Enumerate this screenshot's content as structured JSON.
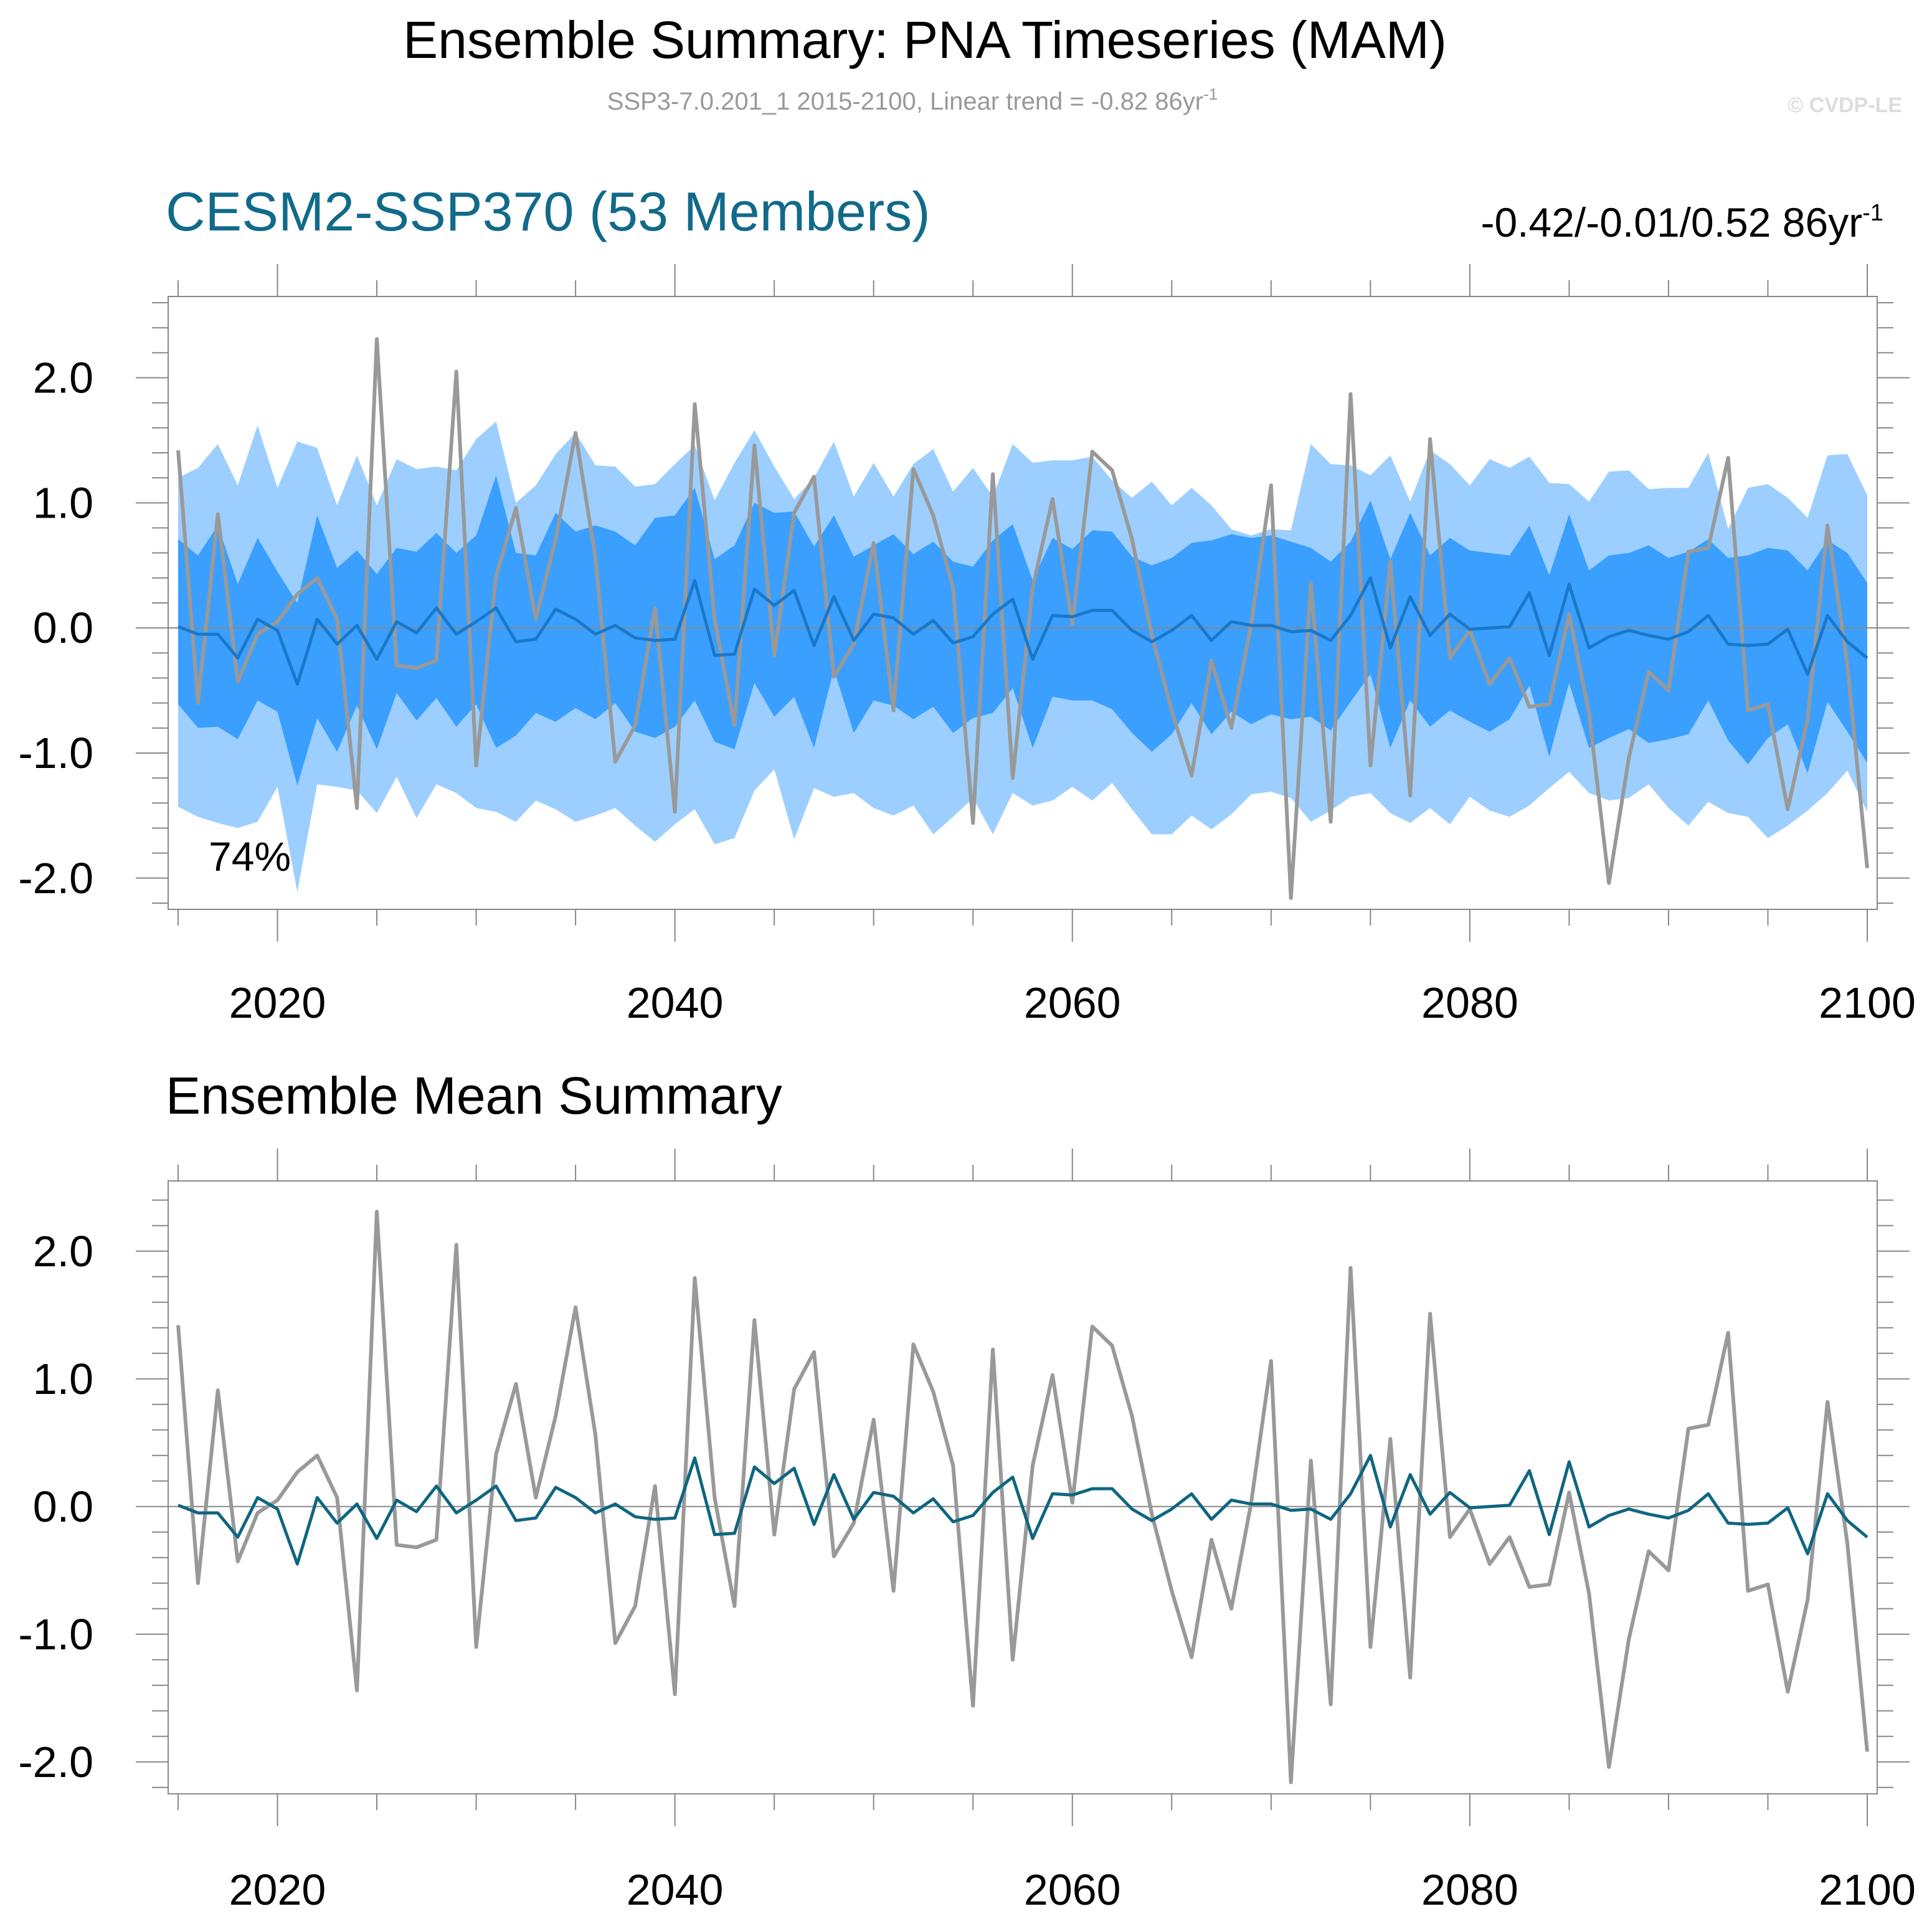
{
  "figure": {
    "title": "Ensemble Summary: PNA Timeseries (MAM)",
    "subtitle_main": "SSP3-7.0.201_1 2015-2100, Linear trend = -0.82 86yr",
    "subtitle_sup": "-1",
    "copyright": "© CVDP-LE"
  },
  "panel1": {
    "title": "CESM2-SSP370 (53 Members)",
    "trend_text": "-0.42/-0.01/0.52 86yr",
    "trend_sup": "-1",
    "percent_label": "74%"
  },
  "panel2": {
    "title": "Ensemble Mean Summary"
  },
  "colors": {
    "band_outer": "#9ccfff",
    "band_inner": "#3a9fff",
    "ens_mean_panel1": "#1a78c8",
    "ens_mean_panel2": "#0f6680",
    "observed": "#999999",
    "panel1_title": "#126a8a",
    "axis": "#888888",
    "subtitle": "#999999",
    "copyright": "#dddddd"
  },
  "chart_data": [
    {
      "type": "area",
      "panel": "CESM2-SSP370 (53 Members)",
      "x_start": 2015,
      "x_end": 2100,
      "xlim": [
        2014.5,
        2100.5
      ],
      "ylim": [
        -2.25,
        2.65
      ],
      "x_ticks": [
        2020,
        2040,
        2060,
        2080,
        2100
      ],
      "y_ticks": [
        2.0,
        1.0,
        0.0,
        -1.0,
        -2.0
      ],
      "y_tick_labels": [
        "2.0",
        "1.0",
        "0.0",
        "-1.0",
        "-2.0"
      ],
      "series": [
        {
          "role": "observed",
          "values": [
            1.42,
            -0.6,
            0.91,
            -0.43,
            -0.05,
            0.05,
            0.27,
            0.4,
            0.07,
            -1.44,
            2.31,
            -0.3,
            -0.32,
            -0.26,
            2.05,
            -1.1,
            0.41,
            0.96,
            0.07,
            0.71,
            1.56,
            0.56,
            -1.07,
            -0.78,
            0.16,
            -1.47,
            1.79,
            0.07,
            -0.78,
            1.46,
            -0.22,
            0.92,
            1.21,
            -0.39,
            -0.13,
            0.68,
            -0.66,
            1.27,
            0.9,
            0.32,
            -1.56,
            1.23,
            -1.2,
            0.32,
            1.03,
            0.03,
            1.41,
            1.26,
            0.71,
            -0.06,
            -0.66,
            -1.18,
            -0.26,
            -0.8,
            0.03,
            1.14,
            -2.16,
            0.36,
            -1.55,
            1.87,
            -1.1,
            0.53,
            -1.34,
            1.51,
            -0.24,
            -0.02,
            -0.45,
            -0.24,
            -0.63,
            -0.61,
            0.11,
            -0.68,
            -2.04,
            -1.04,
            -0.35,
            -0.5,
            0.61,
            0.64,
            1.36,
            -0.66,
            -0.61,
            -1.45,
            -0.73,
            0.82,
            -0.29,
            -1.92
          ]
        },
        {
          "role": "ensemble_mean",
          "values": [
            0.01,
            -0.05,
            -0.05,
            -0.24,
            0.07,
            -0.02,
            -0.45,
            0.07,
            -0.13,
            0.02,
            -0.25,
            0.05,
            -0.04,
            0.16,
            -0.05,
            0.05,
            0.16,
            -0.11,
            -0.09,
            0.15,
            0.07,
            -0.05,
            0.02,
            -0.08,
            -0.1,
            -0.09,
            0.38,
            -0.22,
            -0.21,
            0.31,
            0.18,
            0.3,
            -0.14,
            0.25,
            -0.1,
            0.11,
            0.08,
            -0.05,
            0.06,
            -0.12,
            -0.07,
            0.11,
            0.23,
            -0.25,
            0.1,
            0.09,
            0.14,
            0.14,
            -0.02,
            -0.11,
            -0.02,
            0.1,
            -0.1,
            0.05,
            0.02,
            0.02,
            -0.03,
            -0.02,
            -0.1,
            0.1,
            0.4,
            -0.16,
            0.25,
            -0.06,
            0.11,
            -0.01,
            -0.0,
            0.01,
            0.28,
            -0.22,
            0.35,
            -0.16,
            -0.07,
            -0.02,
            -0.06,
            -0.09,
            -0.03,
            0.1,
            -0.13,
            -0.14,
            -0.13,
            -0.01,
            -0.37,
            0.1,
            -0.11,
            -0.24
          ]
        },
        {
          "role": "inner_band_upper",
          "values": [
            0.71,
            0.58,
            0.82,
            0.35,
            0.72,
            0.45,
            0.2,
            0.9,
            0.48,
            0.62,
            0.43,
            0.64,
            0.61,
            0.76,
            0.6,
            0.74,
            1.22,
            0.6,
            0.58,
            0.92,
            0.77,
            0.82,
            0.77,
            0.66,
            0.88,
            0.9,
            1.12,
            0.55,
            0.66,
            1.0,
            0.92,
            0.93,
            0.65,
            0.9,
            0.57,
            0.66,
            0.75,
            0.59,
            0.69,
            0.53,
            0.49,
            0.7,
            0.83,
            0.38,
            0.72,
            0.63,
            0.78,
            0.77,
            0.57,
            0.5,
            0.56,
            0.68,
            0.7,
            0.75,
            0.72,
            0.74,
            0.69,
            0.64,
            0.53,
            0.69,
            1.02,
            0.55,
            0.92,
            0.58,
            0.72,
            0.62,
            0.6,
            0.58,
            0.82,
            0.42,
            0.91,
            0.46,
            0.58,
            0.6,
            0.66,
            0.56,
            0.61,
            0.71,
            0.56,
            0.58,
            0.64,
            0.62,
            0.46,
            0.7,
            0.6,
            0.36
          ]
        },
        {
          "role": "inner_band_lower",
          "values": [
            -0.61,
            -0.8,
            -0.79,
            -0.89,
            -0.58,
            -0.67,
            -1.26,
            -0.72,
            -0.99,
            -0.62,
            -0.97,
            -0.52,
            -0.74,
            -0.56,
            -0.79,
            -0.61,
            -0.96,
            -0.86,
            -0.68,
            -0.75,
            -0.64,
            -0.73,
            -0.6,
            -0.83,
            -0.88,
            -0.79,
            -0.58,
            -0.91,
            -0.97,
            -0.44,
            -0.71,
            -0.55,
            -0.96,
            -0.33,
            -0.84,
            -0.58,
            -0.62,
            -0.73,
            -0.63,
            -0.84,
            -0.72,
            -0.68,
            -0.48,
            -0.96,
            -0.55,
            -0.58,
            -0.58,
            -0.65,
            -0.84,
            -0.99,
            -0.85,
            -0.6,
            -0.85,
            -0.67,
            -0.77,
            -0.69,
            -0.73,
            -0.71,
            -0.82,
            -0.59,
            -0.37,
            -0.96,
            -0.58,
            -0.79,
            -0.66,
            -0.75,
            -0.83,
            -0.73,
            -0.46,
            -1.03,
            -0.44,
            -0.96,
            -0.88,
            -0.81,
            -0.92,
            -0.89,
            -0.85,
            -0.58,
            -0.9,
            -1.09,
            -0.88,
            -0.77,
            -1.16,
            -0.59,
            -0.83,
            -1.08
          ]
        },
        {
          "role": "outer_band_upper",
          "values": [
            1.2,
            1.28,
            1.47,
            1.14,
            1.62,
            1.12,
            1.49,
            1.44,
            0.98,
            1.38,
            0.98,
            1.35,
            1.27,
            1.29,
            1.26,
            1.51,
            1.65,
            1.0,
            1.14,
            1.39,
            1.56,
            1.3,
            1.29,
            1.13,
            1.15,
            1.31,
            1.46,
            1.02,
            1.32,
            1.58,
            1.29,
            1.03,
            1.2,
            1.49,
            1.05,
            1.32,
            1.05,
            1.31,
            1.43,
            1.09,
            1.28,
            1.05,
            1.47,
            1.32,
            1.34,
            1.34,
            1.37,
            1.18,
            1.04,
            1.17,
            0.98,
            1.12,
            0.98,
            0.79,
            0.74,
            0.79,
            0.78,
            1.47,
            1.31,
            1.3,
            1.22,
            1.38,
            1.01,
            1.42,
            1.31,
            1.14,
            1.35,
            1.28,
            1.37,
            1.16,
            1.15,
            1.01,
            1.25,
            1.26,
            1.11,
            1.12,
            1.12,
            1.4,
            0.79,
            1.12,
            1.15,
            1.04,
            0.88,
            1.38,
            1.39,
            1.06
          ]
        },
        {
          "role": "outer_band_lower",
          "values": [
            -1.43,
            -1.51,
            -1.56,
            -1.6,
            -1.55,
            -1.27,
            -2.11,
            -1.25,
            -1.27,
            -1.3,
            -1.48,
            -1.19,
            -1.52,
            -1.25,
            -1.32,
            -1.44,
            -1.47,
            -1.55,
            -1.38,
            -1.45,
            -1.55,
            -1.5,
            -1.44,
            -1.58,
            -1.71,
            -1.57,
            -1.45,
            -1.73,
            -1.68,
            -1.3,
            -1.13,
            -1.69,
            -1.28,
            -1.35,
            -1.32,
            -1.44,
            -1.5,
            -1.42,
            -1.65,
            -1.51,
            -1.36,
            -1.65,
            -1.32,
            -1.42,
            -1.38,
            -1.27,
            -1.38,
            -1.24,
            -1.45,
            -1.65,
            -1.65,
            -1.5,
            -1.61,
            -1.49,
            -1.33,
            -1.31,
            -1.36,
            -1.55,
            -1.46,
            -1.35,
            -1.32,
            -1.48,
            -1.56,
            -1.44,
            -1.57,
            -1.35,
            -1.46,
            -1.51,
            -1.42,
            -1.28,
            -1.15,
            -1.32,
            -1.38,
            -1.36,
            -1.25,
            -1.44,
            -1.58,
            -1.39,
            -1.48,
            -1.51,
            -1.68,
            -1.58,
            -1.46,
            -1.32,
            -1.14,
            -1.47
          ]
        }
      ]
    },
    {
      "type": "line",
      "panel": "Ensemble Mean Summary",
      "x_start": 2015,
      "x_end": 2100,
      "xlim": [
        2014.5,
        2100.5
      ],
      "ylim": [
        -2.25,
        2.55
      ],
      "x_ticks": [
        2020,
        2040,
        2060,
        2080,
        2100
      ],
      "y_ticks": [
        2.0,
        1.0,
        0.0,
        -1.0,
        -2.0
      ],
      "y_tick_labels": [
        "2.0",
        "1.0",
        "0.0",
        "-1.0",
        "-2.0"
      ],
      "series": [
        {
          "role": "observed",
          "values": [
            1.42,
            -0.6,
            0.91,
            -0.43,
            -0.05,
            0.05,
            0.27,
            0.4,
            0.07,
            -1.44,
            2.31,
            -0.3,
            -0.32,
            -0.26,
            2.05,
            -1.1,
            0.41,
            0.96,
            0.07,
            0.71,
            1.56,
            0.56,
            -1.07,
            -0.78,
            0.16,
            -1.47,
            1.79,
            0.07,
            -0.78,
            1.46,
            -0.22,
            0.92,
            1.21,
            -0.39,
            -0.13,
            0.68,
            -0.66,
            1.27,
            0.9,
            0.32,
            -1.56,
            1.23,
            -1.2,
            0.32,
            1.03,
            0.03,
            1.41,
            1.26,
            0.71,
            -0.06,
            -0.66,
            -1.18,
            -0.26,
            -0.8,
            0.03,
            1.14,
            -2.16,
            0.36,
            -1.55,
            1.87,
            -1.1,
            0.53,
            -1.34,
            1.51,
            -0.24,
            -0.02,
            -0.45,
            -0.24,
            -0.63,
            -0.61,
            0.11,
            -0.68,
            -2.04,
            -1.04,
            -0.35,
            -0.5,
            0.61,
            0.64,
            1.36,
            -0.66,
            -0.61,
            -1.45,
            -0.73,
            0.82,
            -0.29,
            -1.92
          ]
        },
        {
          "role": "ensemble_mean",
          "values": [
            0.01,
            -0.05,
            -0.05,
            -0.24,
            0.07,
            -0.02,
            -0.45,
            0.07,
            -0.13,
            0.02,
            -0.25,
            0.05,
            -0.04,
            0.16,
            -0.05,
            0.05,
            0.16,
            -0.11,
            -0.09,
            0.15,
            0.07,
            -0.05,
            0.02,
            -0.08,
            -0.1,
            -0.09,
            0.38,
            -0.22,
            -0.21,
            0.31,
            0.18,
            0.3,
            -0.14,
            0.25,
            -0.1,
            0.11,
            0.08,
            -0.05,
            0.06,
            -0.12,
            -0.07,
            0.11,
            0.23,
            -0.25,
            0.1,
            0.09,
            0.14,
            0.14,
            -0.02,
            -0.11,
            -0.02,
            0.1,
            -0.1,
            0.05,
            0.02,
            0.02,
            -0.03,
            -0.02,
            -0.1,
            0.1,
            0.4,
            -0.16,
            0.25,
            -0.06,
            0.11,
            -0.01,
            -0.0,
            0.01,
            0.28,
            -0.22,
            0.35,
            -0.16,
            -0.07,
            -0.02,
            -0.06,
            -0.09,
            -0.03,
            0.1,
            -0.13,
            -0.14,
            -0.13,
            -0.01,
            -0.37,
            0.1,
            -0.11,
            -0.24
          ]
        }
      ]
    }
  ]
}
